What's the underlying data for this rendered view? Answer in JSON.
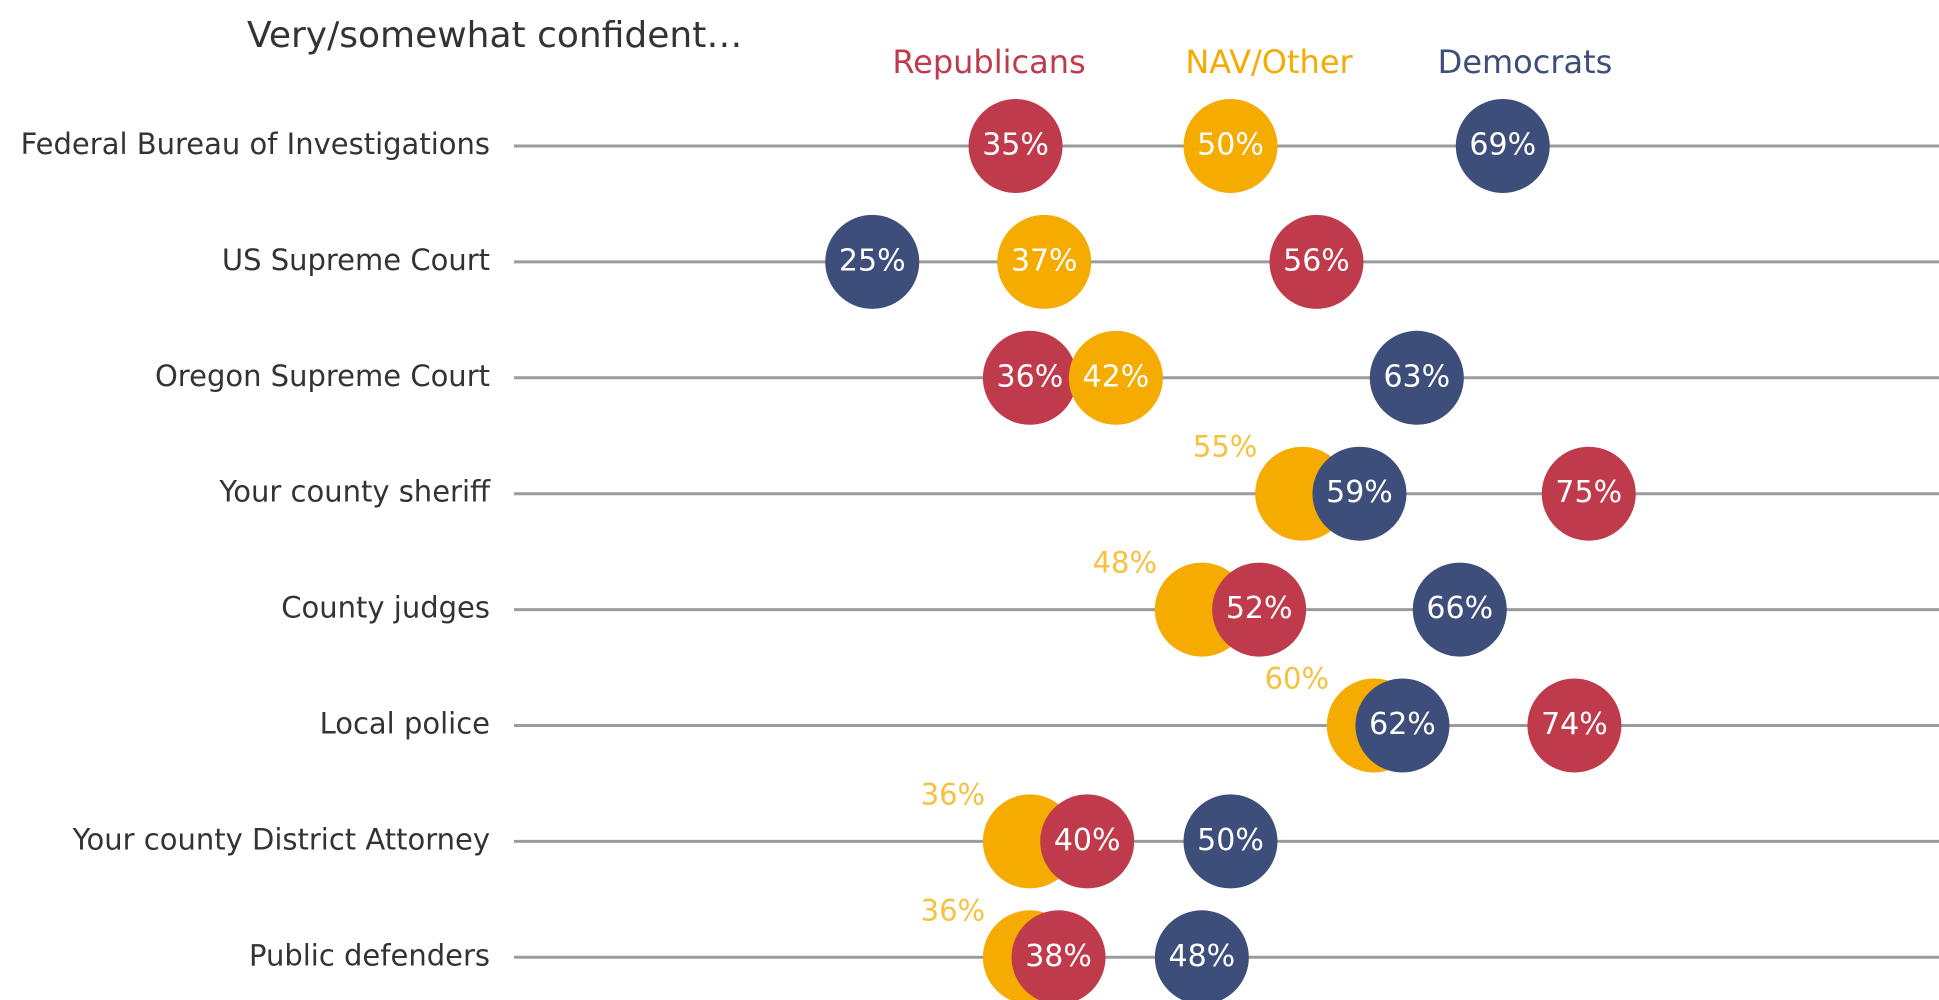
{
  "chart_data": {
    "type": "dot",
    "title": "Very/somewhat confident…",
    "categories": [
      "Federal Bureau of Investigations",
      "US Supreme Court",
      "Oregon Supreme Court",
      "Your county sheriff",
      "County judges",
      "Local police",
      "Your county District Attorney",
      "Public defenders"
    ],
    "series": [
      {
        "name": "Republicans",
        "color": "#bf3b4c",
        "values": [
          35,
          56,
          36,
          75,
          52,
          74,
          40,
          38
        ],
        "value_labels": [
          "35%",
          "56%",
          "36%",
          "75%",
          "52%",
          "74%",
          "40%",
          "38%"
        ]
      },
      {
        "name": "NAV/Other",
        "color": "#f5ab00",
        "values": [
          50,
          37,
          42,
          55,
          48,
          60,
          36,
          36
        ],
        "value_labels": [
          "50%",
          "37%",
          "42%",
          "55%",
          "48%",
          "60%",
          "36%",
          "36%"
        ]
      },
      {
        "name": "Democrats",
        "color": "#3d4e7a",
        "values": [
          69,
          25,
          63,
          59,
          66,
          62,
          50,
          48
        ],
        "value_labels": [
          "69%",
          "25%",
          "63%",
          "59%",
          "66%",
          "62%",
          "50%",
          "48%"
        ]
      }
    ],
    "xlim": [
      0,
      100
    ]
  }
}
